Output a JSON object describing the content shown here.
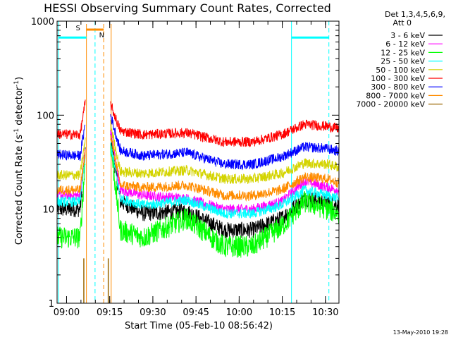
{
  "chart_data": {
    "type": "line",
    "title": "HESSI Observing Summary Count Rates, Corrected",
    "xlabel": "Start Time (05-Feb-10 08:56:42)",
    "ylabel_main": "Corrected Count Rate (s",
    "ylabel_sup1": "-1",
    "ylabel_mid": " detector",
    "ylabel_sup2": "-1",
    "ylabel_end": ")",
    "x_unit": "minutes since 08:56:42",
    "xlim": [
      0,
      98
    ],
    "yscale": "log",
    "ylim": [
      1,
      1000
    ],
    "x_ticks": [
      {
        "label": "09:00",
        "value": 3.3
      },
      {
        "label": "09:15",
        "value": 18.3
      },
      {
        "label": "09:30",
        "value": 33.3
      },
      {
        "label": "09:45",
        "value": 48.3
      },
      {
        "label": "10:00",
        "value": 63.3
      },
      {
        "label": "10:15",
        "value": 78.3
      },
      {
        "label": "10:30",
        "value": 93.3
      }
    ],
    "y_ticks": [
      {
        "label": "1",
        "value": 1
      },
      {
        "label": "10",
        "value": 10
      },
      {
        "label": "100",
        "value": 100
      },
      {
        "label": "1000",
        "value": 1000
      }
    ],
    "legend_title_line1": "Det 1,3,4,5,6,9,",
    "legend_title_line2": "Att 0",
    "timestamp": "13-May-2010 19:28",
    "gaps": [
      [
        9.8,
        18.6
      ]
    ],
    "series": [
      {
        "name": "3 - 6 keV",
        "color": "#000000",
        "base": 10,
        "profile": [
          [
            0,
            10
          ],
          [
            8,
            10
          ],
          [
            10,
            50
          ],
          [
            18.6,
            60
          ],
          [
            22,
            12
          ],
          [
            30,
            9
          ],
          [
            45,
            9.5
          ],
          [
            58,
            6
          ],
          [
            68,
            6
          ],
          [
            78,
            8
          ],
          [
            86,
            13
          ],
          [
            94,
            12
          ],
          [
            98,
            11
          ]
        ]
      },
      {
        "name": "6 - 12 keV",
        "color": "#ff00ff",
        "profile": [
          [
            0,
            14
          ],
          [
            8,
            14
          ],
          [
            10,
            50
          ],
          [
            18.6,
            70
          ],
          [
            22,
            16
          ],
          [
            30,
            14
          ],
          [
            45,
            13
          ],
          [
            58,
            10
          ],
          [
            68,
            10
          ],
          [
            78,
            12
          ],
          [
            86,
            20
          ],
          [
            94,
            17
          ],
          [
            98,
            16
          ]
        ]
      },
      {
        "name": "12 - 25 keV",
        "color": "#00ff00",
        "profile": [
          [
            0,
            5
          ],
          [
            8,
            5
          ],
          [
            10,
            40
          ],
          [
            18.6,
            50
          ],
          [
            22,
            6
          ],
          [
            30,
            5
          ],
          [
            45,
            8
          ],
          [
            58,
            4
          ],
          [
            68,
            4
          ],
          [
            78,
            6.5
          ],
          [
            86,
            12
          ],
          [
            94,
            10
          ],
          [
            98,
            9
          ]
        ]
      },
      {
        "name": "25 - 50 keV",
        "color": "#00ffff",
        "profile": [
          [
            0,
            12
          ],
          [
            8,
            12
          ],
          [
            10,
            40
          ],
          [
            18.6,
            50
          ],
          [
            22,
            13
          ],
          [
            30,
            11
          ],
          [
            45,
            12.5
          ],
          [
            58,
            9
          ],
          [
            68,
            9
          ],
          [
            78,
            11
          ],
          [
            86,
            16
          ],
          [
            94,
            14
          ],
          [
            98,
            13
          ]
        ]
      },
      {
        "name": "50 - 100 keV",
        "color": "#d4d400",
        "profile": [
          [
            0,
            23
          ],
          [
            8,
            23
          ],
          [
            10,
            60
          ],
          [
            18.6,
            80
          ],
          [
            22,
            25
          ],
          [
            30,
            24
          ],
          [
            45,
            26
          ],
          [
            58,
            21
          ],
          [
            68,
            21
          ],
          [
            78,
            24
          ],
          [
            86,
            31
          ],
          [
            94,
            30
          ],
          [
            98,
            28
          ]
        ]
      },
      {
        "name": "100 - 300 keV",
        "color": "#ff0000",
        "profile": [
          [
            0,
            63
          ],
          [
            8,
            62
          ],
          [
            10,
            150
          ],
          [
            18.6,
            130
          ],
          [
            22,
            68
          ],
          [
            30,
            62
          ],
          [
            45,
            65
          ],
          [
            58,
            52
          ],
          [
            68,
            52
          ],
          [
            78,
            62
          ],
          [
            86,
            80
          ],
          [
            94,
            76
          ],
          [
            98,
            72
          ]
        ]
      },
      {
        "name": "300 - 800 keV",
        "color": "#0000ff",
        "profile": [
          [
            0,
            38
          ],
          [
            8,
            37
          ],
          [
            10,
            90
          ],
          [
            18.6,
            100
          ],
          [
            22,
            42
          ],
          [
            30,
            37
          ],
          [
            45,
            40
          ],
          [
            58,
            30
          ],
          [
            68,
            30
          ],
          [
            78,
            36
          ],
          [
            86,
            46
          ],
          [
            94,
            44
          ],
          [
            98,
            41
          ]
        ]
      },
      {
        "name": "800 - 7000 keV",
        "color": "#ff8c00",
        "profile": [
          [
            0,
            16
          ],
          [
            8,
            16
          ],
          [
            10,
            45
          ],
          [
            18.6,
            60
          ],
          [
            22,
            18
          ],
          [
            30,
            17
          ],
          [
            45,
            18
          ],
          [
            58,
            14
          ],
          [
            68,
            14
          ],
          [
            78,
            16
          ],
          [
            86,
            22
          ],
          [
            94,
            21
          ],
          [
            98,
            19
          ]
        ]
      },
      {
        "name": "7000 - 20000 keV",
        "color": "#996600",
        "profile": [
          [
            0,
            0
          ],
          [
            98,
            0
          ]
        ]
      }
    ],
    "saa_label": "S",
    "night_label": "N",
    "flag_level": 670,
    "cyan_dashed_x": [
      13.2,
      94.5
    ],
    "cyan_solid_x": [
      0.5,
      81.5
    ],
    "orange_solid_x": [
      10.2,
      18.8
    ],
    "orange_dashed_x": [
      16.2
    ],
    "orange_flag_span": [
      10.2,
      16.2
    ],
    "cyan_flag_spans": [
      [
        0.5,
        10.2
      ],
      [
        81.5,
        94.5
      ]
    ]
  }
}
